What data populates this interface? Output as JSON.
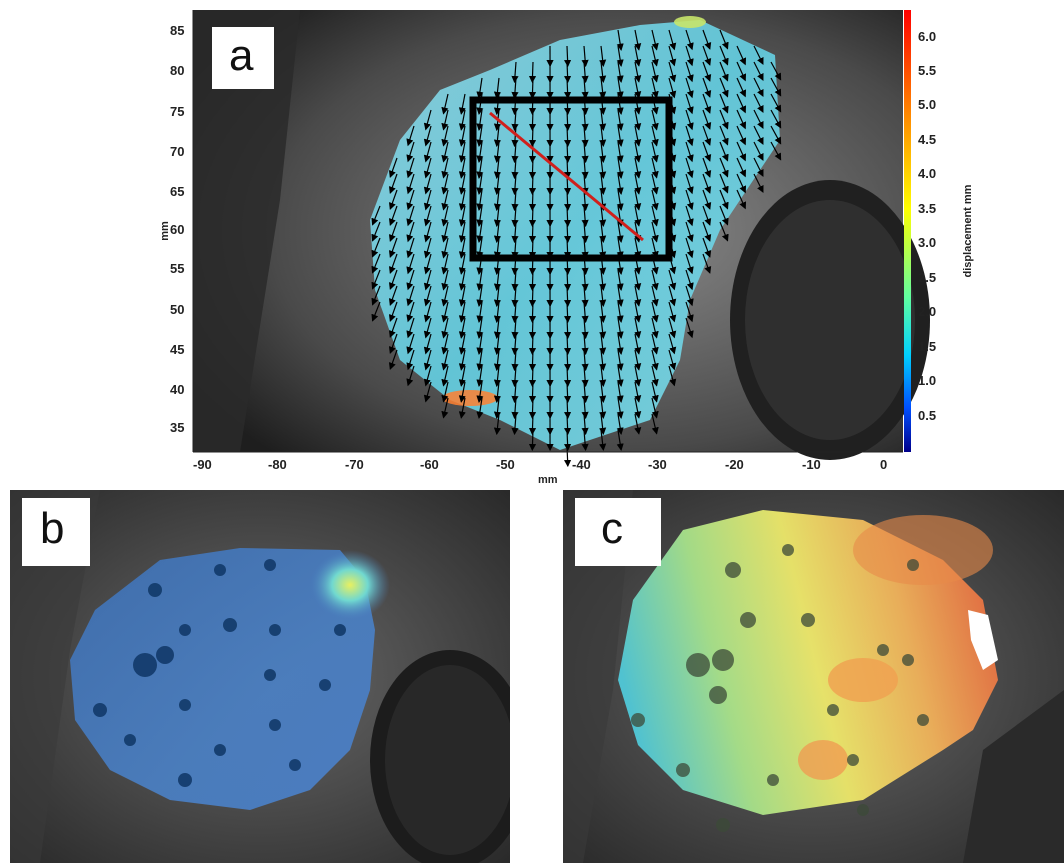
{
  "panels": {
    "a": {
      "label": "a",
      "y_axis_label": "mm",
      "x_axis_label": "mm",
      "y_ticks": [
        "85",
        "80",
        "75",
        "70",
        "65",
        "60",
        "55",
        "50",
        "45",
        "40",
        "35"
      ],
      "x_ticks": [
        "-90",
        "-80",
        "-70",
        "-60",
        "-50",
        "-40",
        "-30",
        "-20",
        "-10",
        "0"
      ],
      "colorbar": {
        "title": "displacement mm",
        "ticks": [
          "6.0",
          "5.5",
          "5.0",
          "4.5",
          "4.0",
          "3.5",
          "3.0",
          "2.5",
          "2.0",
          "1.5",
          "1.0",
          "0.5"
        ],
        "colors": [
          "#00008b",
          "#0050ff",
          "#00d0ff",
          "#60ffa0",
          "#ffff00",
          "#ff9000",
          "#ff0000"
        ]
      }
    },
    "b": {
      "label": "b"
    },
    "c": {
      "label": "c"
    }
  }
}
